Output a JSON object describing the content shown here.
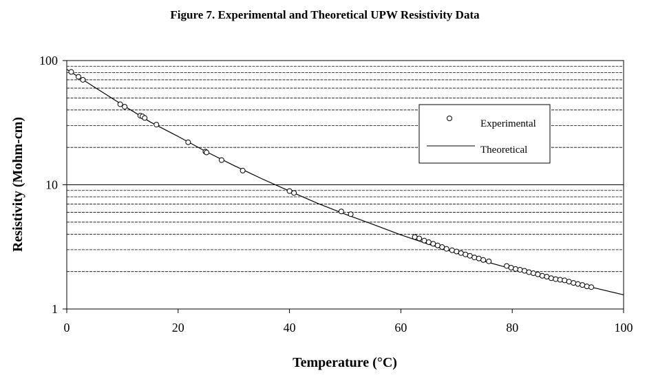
{
  "chart_data": {
    "type": "scatter",
    "title": "Figure 7.  Experimental and Theoretical UPW Resistivity Data",
    "xlabel": "Temperature (°C)",
    "ylabel": "Resistivity (Mohm-cm)",
    "xlim": [
      0,
      100
    ],
    "ylim": [
      1,
      100
    ],
    "yscale": "log",
    "x_ticks": [
      "0",
      "20",
      "40",
      "60",
      "80",
      "100"
    ],
    "y_ticks": [
      "1",
      "10",
      "100"
    ],
    "grid": "horizontal",
    "legend": {
      "position": "right",
      "entries": [
        "Experimental",
        "Theoretical"
      ]
    },
    "series": [
      {
        "name": "Experimental",
        "style": "open-circle",
        "points": [
          [
            0.8,
            81
          ],
          [
            2.1,
            74
          ],
          [
            2.9,
            70
          ],
          [
            9.6,
            44.5
          ],
          [
            10.4,
            42.5
          ],
          [
            13.2,
            36.0
          ],
          [
            13.6,
            35.5
          ],
          [
            14.0,
            34.5
          ],
          [
            16.1,
            30.5
          ],
          [
            21.8,
            22.0
          ],
          [
            24.9,
            18.5
          ],
          [
            25.1,
            18.2
          ],
          [
            27.8,
            15.8
          ],
          [
            31.6,
            13.0
          ],
          [
            40.0,
            8.9
          ],
          [
            40.8,
            8.6
          ],
          [
            49.3,
            6.1
          ],
          [
            51.0,
            5.8
          ],
          [
            62.5,
            3.8
          ],
          [
            63.3,
            3.7
          ],
          [
            64.2,
            3.55
          ],
          [
            65.0,
            3.45
          ],
          [
            65.8,
            3.35
          ],
          [
            66.6,
            3.25
          ],
          [
            67.4,
            3.15
          ],
          [
            68.2,
            3.05
          ],
          [
            69.2,
            2.97
          ],
          [
            70.0,
            2.9
          ],
          [
            70.8,
            2.82
          ],
          [
            71.6,
            2.75
          ],
          [
            72.4,
            2.68
          ],
          [
            73.2,
            2.6
          ],
          [
            74.0,
            2.55
          ],
          [
            74.8,
            2.48
          ],
          [
            75.8,
            2.42
          ],
          [
            79.0,
            2.22
          ],
          [
            79.8,
            2.15
          ],
          [
            80.6,
            2.1
          ],
          [
            81.4,
            2.07
          ],
          [
            82.2,
            2.03
          ],
          [
            83.0,
            1.98
          ],
          [
            83.8,
            1.94
          ],
          [
            84.6,
            1.9
          ],
          [
            85.4,
            1.85
          ],
          [
            86.2,
            1.82
          ],
          [
            87.0,
            1.77
          ],
          [
            87.8,
            1.74
          ],
          [
            88.6,
            1.72
          ],
          [
            89.4,
            1.7
          ],
          [
            90.2,
            1.66
          ],
          [
            91.0,
            1.62
          ],
          [
            91.8,
            1.59
          ],
          [
            92.6,
            1.56
          ],
          [
            93.4,
            1.52
          ],
          [
            94.2,
            1.5
          ]
        ]
      },
      {
        "name": "Theoretical",
        "style": "line",
        "points": [
          [
            0,
            85
          ],
          [
            5,
            61
          ],
          [
            10,
            44
          ],
          [
            15,
            32
          ],
          [
            20,
            24.5
          ],
          [
            25,
            18.5
          ],
          [
            30,
            14.3
          ],
          [
            35,
            11.2
          ],
          [
            40,
            8.9
          ],
          [
            45,
            7.1
          ],
          [
            50,
            5.8
          ],
          [
            55,
            4.8
          ],
          [
            60,
            3.95
          ],
          [
            65,
            3.32
          ],
          [
            70,
            2.82
          ],
          [
            75,
            2.42
          ],
          [
            80,
            2.1
          ],
          [
            85,
            1.85
          ],
          [
            90,
            1.64
          ],
          [
            95,
            1.47
          ],
          [
            100,
            1.3
          ]
        ]
      }
    ]
  },
  "colors": {
    "ink": "#000000",
    "background": "#ffffff"
  }
}
